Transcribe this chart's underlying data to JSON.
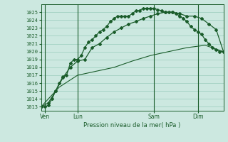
{
  "xlabel": "Pression niveau de la mer( hPa )",
  "bg_color": "#cce8e0",
  "grid_color": "#99ccbb",
  "line_color": "#1a5c2a",
  "ylim": [
    1012.5,
    1026.0
  ],
  "xlim": [
    0,
    100
  ],
  "xtick_positions": [
    2,
    20,
    62,
    86
  ],
  "xtick_labels": [
    "Ven",
    "Lun",
    "Sam",
    "Dim"
  ],
  "ytick_min": 1013,
  "ytick_max": 1025,
  "series1_x": [
    0,
    2,
    4,
    6,
    8,
    10,
    12,
    14,
    16,
    18,
    20,
    22,
    24,
    26,
    28,
    30,
    32,
    34,
    36,
    38,
    40,
    42,
    44,
    46,
    48,
    50,
    52,
    54,
    56,
    58,
    60,
    62,
    64,
    66,
    68,
    70,
    72,
    74,
    76,
    78,
    80,
    82,
    84,
    86,
    88,
    90,
    92,
    94,
    96,
    98,
    100
  ],
  "series1_y": [
    1013.0,
    1013.0,
    1013.2,
    1014.0,
    1015.0,
    1016.0,
    1016.8,
    1017.0,
    1018.5,
    1019.0,
    1019.0,
    1019.5,
    1020.5,
    1021.2,
    1021.5,
    1022.0,
    1022.5,
    1022.8,
    1023.2,
    1023.8,
    1024.2,
    1024.5,
    1024.5,
    1024.5,
    1024.5,
    1024.8,
    1025.2,
    1025.2,
    1025.5,
    1025.5,
    1025.5,
    1025.5,
    1025.3,
    1025.2,
    1025.0,
    1025.0,
    1025.0,
    1024.8,
    1024.5,
    1024.2,
    1023.8,
    1023.2,
    1022.8,
    1022.5,
    1022.2,
    1021.5,
    1021.0,
    1020.5,
    1020.2,
    1020.0,
    1020.0
  ],
  "series2_x": [
    0,
    4,
    8,
    12,
    16,
    20,
    24,
    28,
    32,
    36,
    40,
    44,
    48,
    52,
    56,
    60,
    64,
    68,
    72,
    76,
    80,
    84,
    88,
    92,
    96,
    100
  ],
  "series2_y": [
    1013.0,
    1013.5,
    1015.0,
    1016.7,
    1018.0,
    1018.8,
    1019.0,
    1020.5,
    1021.0,
    1021.8,
    1022.5,
    1023.0,
    1023.5,
    1023.8,
    1024.2,
    1024.5,
    1024.8,
    1025.0,
    1025.0,
    1024.8,
    1024.5,
    1024.5,
    1024.2,
    1023.5,
    1022.8,
    1020.0
  ],
  "series3_x": [
    0,
    10,
    20,
    30,
    40,
    50,
    60,
    70,
    80,
    90,
    100
  ],
  "series3_y": [
    1013.0,
    1015.5,
    1017.0,
    1017.5,
    1018.0,
    1018.8,
    1019.5,
    1020.0,
    1020.5,
    1020.8,
    1020.0
  ],
  "vline_x": [
    2,
    20,
    62,
    86
  ]
}
